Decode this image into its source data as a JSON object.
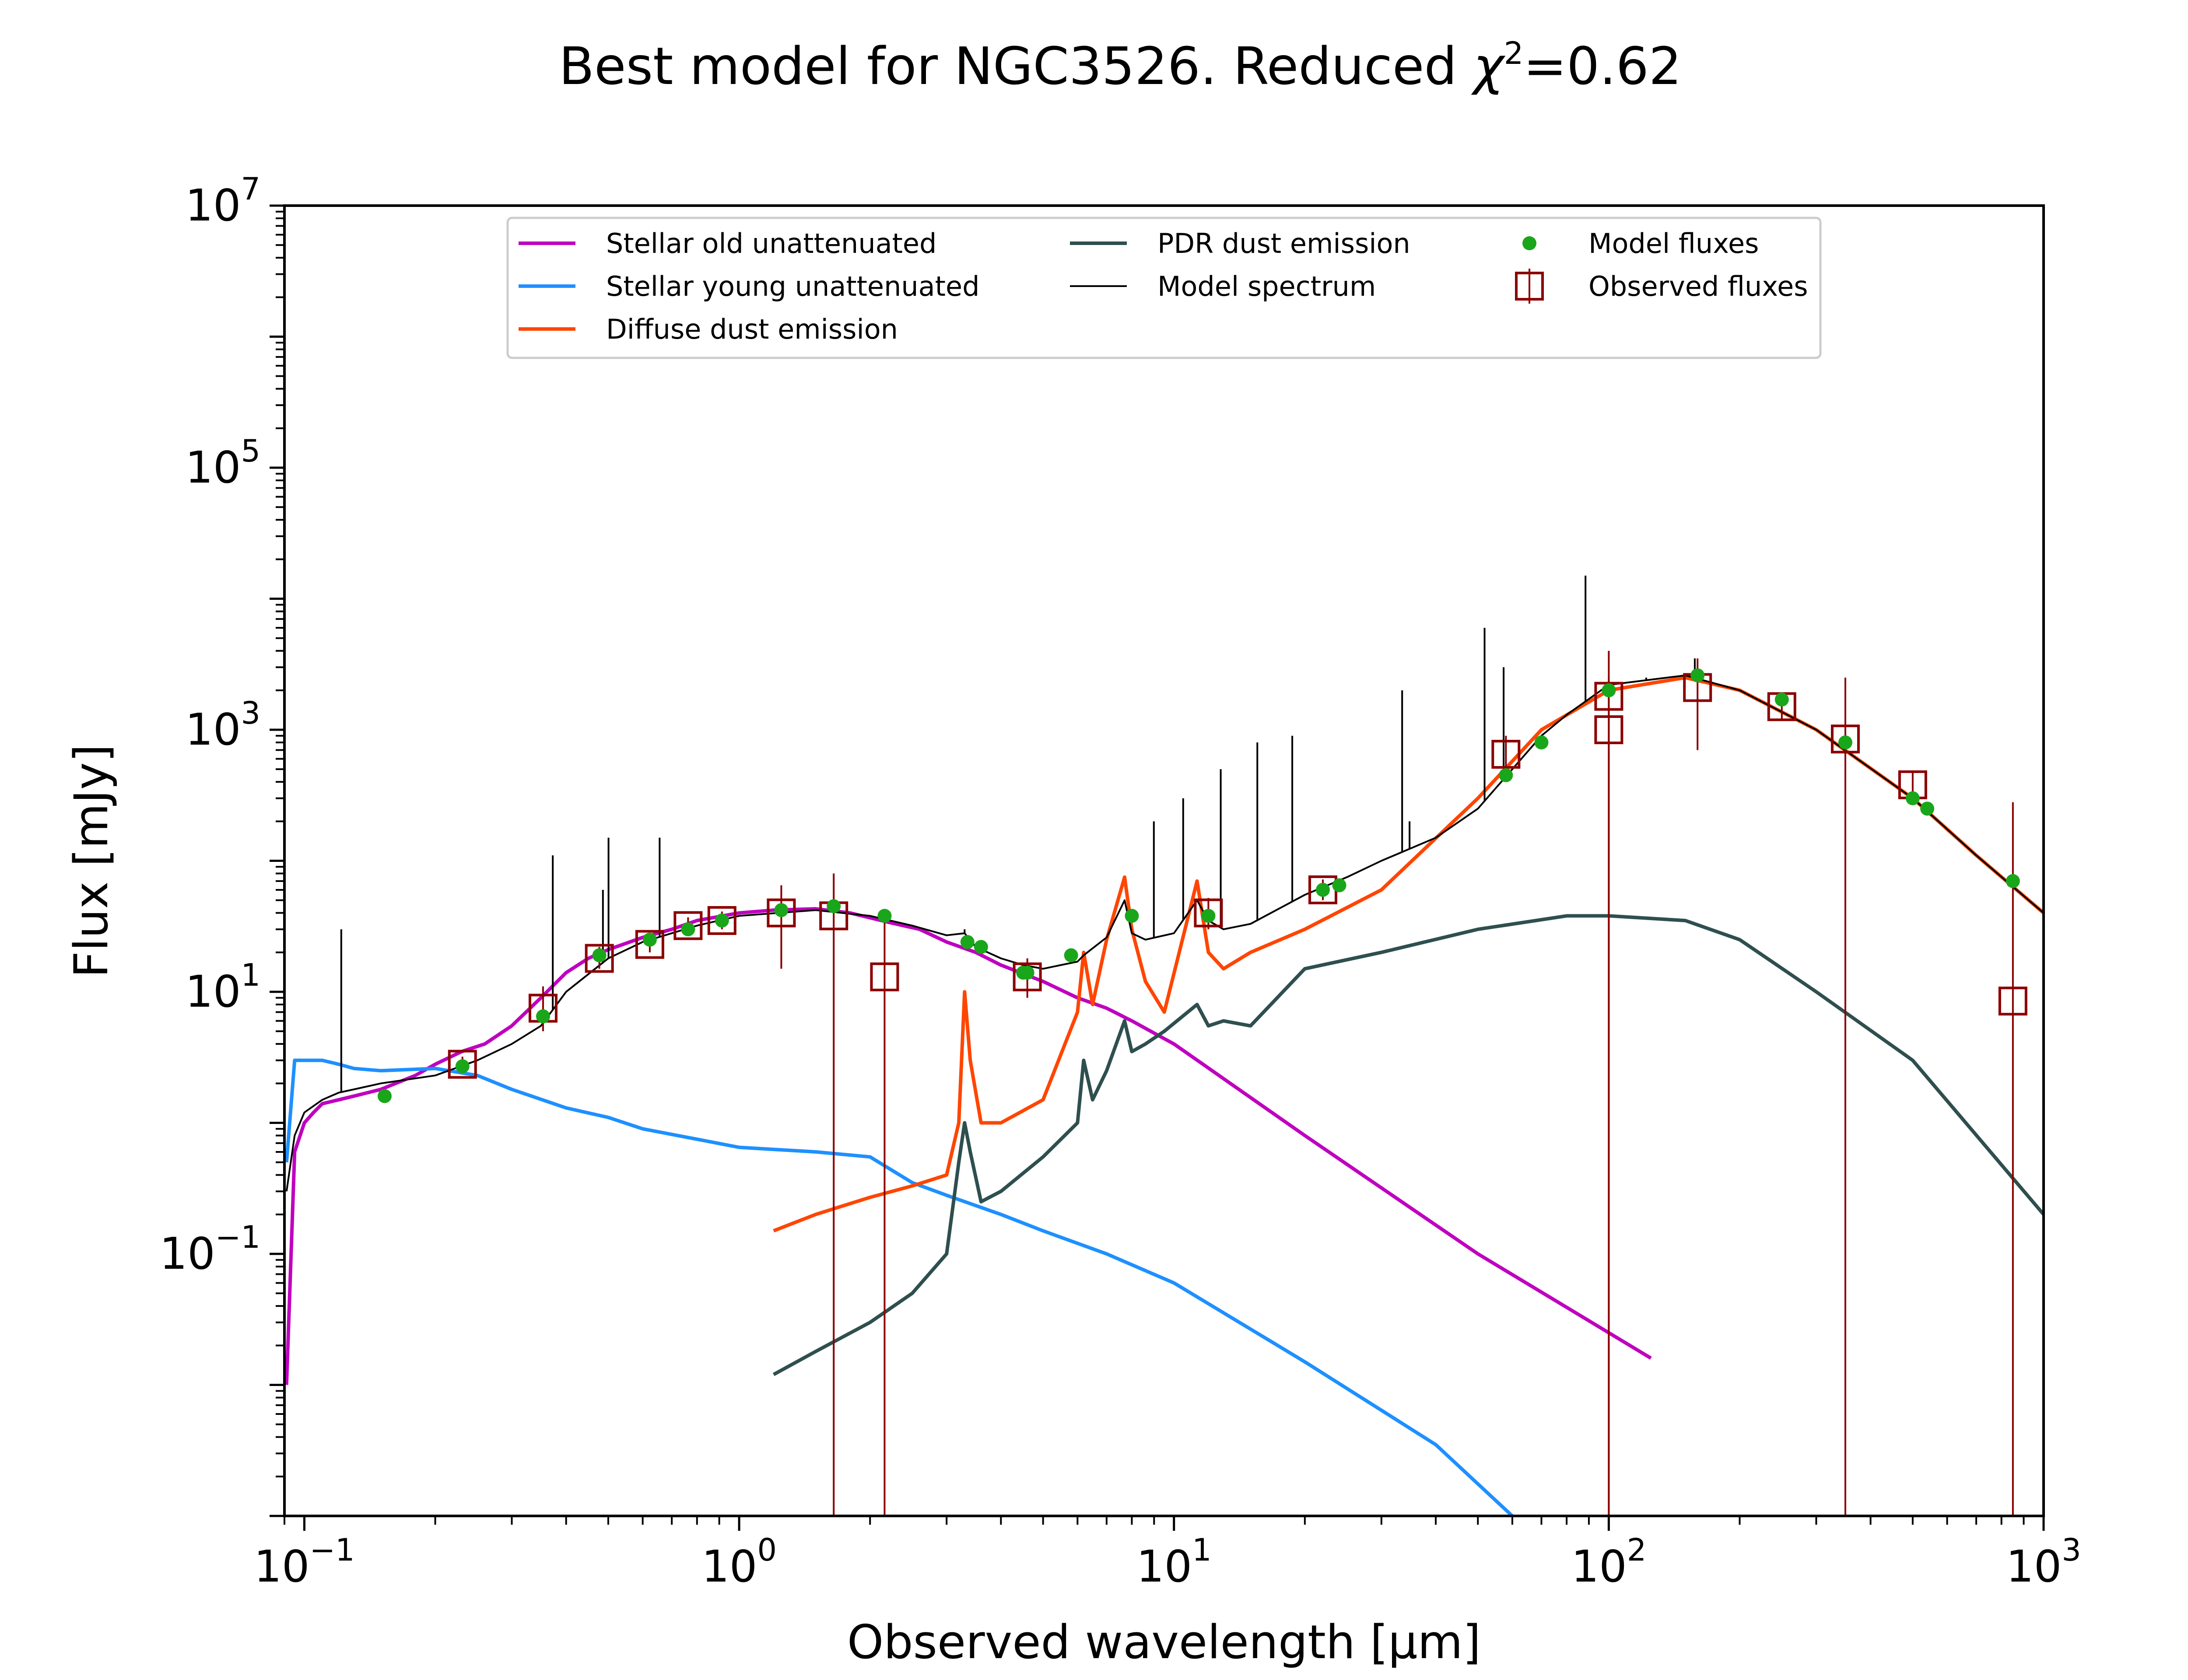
{
  "title_prefix": "Best model for NGC3526. Reduced ",
  "title_chi": "χ",
  "title_chi_power": "2",
  "title_value": "=0.62",
  "chart_data": {
    "type": "line",
    "title": "Best model for NGC3526. Reduced χ²=0.62",
    "xlabel": "Observed wavelength [μm]",
    "ylabel": "Flux [mJy]",
    "xscale": "log",
    "yscale": "log",
    "xlim": [
      0.09,
      1000
    ],
    "ylim": [
      0.001,
      10000000
    ],
    "xticks": [
      {
        "value": 0.1,
        "base": "10",
        "exp": "−1"
      },
      {
        "value": 1,
        "base": "10",
        "exp": "0"
      },
      {
        "value": 10,
        "base": "10",
        "exp": "1"
      },
      {
        "value": 100,
        "base": "10",
        "exp": "2"
      },
      {
        "value": 1000,
        "base": "10",
        "exp": "3"
      }
    ],
    "yticks": [
      {
        "value": 0.1,
        "base": "10",
        "exp": "−1"
      },
      {
        "value": 10,
        "base": "10",
        "exp": "1"
      },
      {
        "value": 1000,
        "base": "10",
        "exp": "3"
      },
      {
        "value": 100000,
        "base": "10",
        "exp": "5"
      },
      {
        "value": 10000000,
        "base": "10",
        "exp": "7"
      }
    ],
    "grid": false,
    "legend_position": "top-center",
    "legend": [
      {
        "label": "Stellar old unattenuated",
        "kind": "line",
        "color": "#bf00bf"
      },
      {
        "label": "Stellar young unattenuated",
        "kind": "line",
        "color": "#1e90ff"
      },
      {
        "label": "Diffuse dust emission",
        "kind": "line",
        "color": "#ff4500"
      },
      {
        "label": "PDR dust emission",
        "kind": "line",
        "color": "#2f4f4f"
      },
      {
        "label": "Model spectrum",
        "kind": "thinline",
        "color": "#000000"
      },
      {
        "label": "Model fluxes",
        "kind": "dot",
        "color": "#1aa61a"
      },
      {
        "label": "Observed fluxes",
        "kind": "square",
        "color": "#8b0000"
      }
    ],
    "series": [
      {
        "name": "Stellar old unattenuated",
        "color": "#bf00bf",
        "x": [
          0.091,
          0.095,
          0.1,
          0.105,
          0.11,
          0.12,
          0.13,
          0.15,
          0.18,
          0.2,
          0.23,
          0.26,
          0.3,
          0.35,
          0.4,
          0.45,
          0.5,
          0.6,
          0.7,
          0.8,
          1.0,
          1.2,
          1.5,
          1.8,
          2.2,
          2.6,
          3.0,
          3.5,
          4.0,
          5.0,
          6.0,
          7.0,
          8.0,
          10,
          20,
          50,
          100,
          125
        ],
        "y": [
          0.01,
          0.6,
          1.0,
          1.2,
          1.4,
          1.5,
          1.6,
          1.8,
          2.3,
          2.8,
          3.5,
          4.0,
          5.5,
          9.0,
          14,
          18,
          21,
          26,
          30,
          35,
          40,
          42,
          43,
          40,
          34,
          30,
          24,
          20,
          16,
          12,
          9.0,
          7.5,
          6.0,
          4.0,
          0.8,
          0.1,
          0.025,
          0.016
        ]
      },
      {
        "name": "Stellar young unattenuated",
        "color": "#1e90ff",
        "x": [
          0.091,
          0.095,
          0.1,
          0.11,
          0.12,
          0.13,
          0.15,
          0.2,
          0.25,
          0.3,
          0.4,
          0.5,
          0.6,
          0.8,
          1.0,
          1.5,
          2.0,
          2.5,
          3.0,
          4.0,
          5.0,
          7.0,
          10,
          20,
          40,
          60
        ],
        "y": [
          0.5,
          3.0,
          3.0,
          3.0,
          2.8,
          2.6,
          2.5,
          2.6,
          2.3,
          1.8,
          1.3,
          1.1,
          0.9,
          0.75,
          0.65,
          0.6,
          0.55,
          0.35,
          0.28,
          0.2,
          0.15,
          0.1,
          0.06,
          0.015,
          0.0035,
          0.001
        ]
      },
      {
        "name": "Diffuse dust emission",
        "color": "#ff4500",
        "x": [
          1.2,
          1.5,
          2.0,
          2.5,
          3.0,
          3.2,
          3.3,
          3.4,
          3.6,
          4.0,
          5.0,
          6.0,
          6.2,
          6.5,
          7.0,
          7.7,
          8.0,
          8.6,
          9.5,
          11.3,
          12,
          13,
          15,
          20,
          30,
          50,
          70,
          100,
          150,
          200,
          300,
          500,
          700,
          1000
        ],
        "y": [
          0.15,
          0.2,
          0.27,
          0.33,
          0.4,
          1.0,
          10,
          3.0,
          1.0,
          1.0,
          1.5,
          7.0,
          20,
          8.0,
          25,
          75,
          30,
          12,
          7.0,
          70,
          20,
          15,
          20,
          30,
          60,
          300,
          1000,
          2000,
          2500,
          2000,
          1000,
          300,
          110,
          40
        ]
      },
      {
        "name": "PDR dust emission",
        "color": "#2f4f4f",
        "x": [
          1.2,
          1.5,
          2.0,
          2.5,
          3.0,
          3.2,
          3.3,
          3.4,
          3.6,
          4.0,
          5.0,
          6.0,
          6.2,
          6.5,
          7.0,
          7.7,
          8.0,
          8.6,
          9.5,
          11.3,
          12,
          13,
          15,
          20,
          30,
          50,
          80,
          100,
          150,
          200,
          300,
          500,
          1000
        ],
        "y": [
          0.012,
          0.018,
          0.03,
          0.05,
          0.1,
          0.5,
          1.0,
          0.6,
          0.25,
          0.3,
          0.55,
          1.0,
          3.0,
          1.5,
          2.5,
          6.0,
          3.5,
          4.0,
          5.0,
          8.0,
          5.5,
          6.0,
          5.5,
          15,
          20,
          30,
          38,
          38,
          35,
          25,
          10,
          3.0,
          0.2
        ]
      },
      {
        "name": "Model spectrum",
        "color": "#000000",
        "x": [
          0.091,
          0.095,
          0.1,
          0.11,
          0.12,
          0.13,
          0.15,
          0.2,
          0.25,
          0.3,
          0.35,
          0.4,
          0.5,
          0.6,
          0.7,
          0.8,
          1.0,
          1.5,
          2.0,
          2.5,
          3.0,
          3.3,
          3.5,
          4.0,
          4.5,
          5.0,
          6.0,
          6.2,
          7.0,
          7.7,
          8.0,
          8.6,
          10,
          11.3,
          12,
          13,
          15,
          20,
          25,
          30,
          40,
          50,
          60,
          70,
          80,
          100,
          150,
          200,
          300,
          500,
          700,
          1000
        ],
        "y": [
          0.3,
          0.8,
          1.2,
          1.5,
          1.7,
          1.8,
          2.0,
          2.3,
          3.0,
          4.0,
          5.5,
          10,
          18,
          24,
          28,
          32,
          38,
          42,
          38,
          32,
          27,
          28,
          22,
          18,
          16,
          15,
          17,
          19,
          26,
          50,
          28,
          25,
          28,
          50,
          35,
          30,
          33,
          55,
          75,
          100,
          150,
          250,
          500,
          900,
          1300,
          2200,
          2600,
          2000,
          1000,
          300,
          110,
          40
        ]
      }
    ],
    "emission_lines": [
      {
        "x": 0.1216,
        "top": 30
      },
      {
        "x": 0.3727,
        "top": 110
      },
      {
        "x": 0.4861,
        "top": 60
      },
      {
        "x": 0.5007,
        "top": 150
      },
      {
        "x": 0.6563,
        "top": 150
      },
      {
        "x": 3.3,
        "top": 30
      },
      {
        "x": 8.99,
        "top": 200
      },
      {
        "x": 10.5,
        "top": 300
      },
      {
        "x": 12.81,
        "top": 500
      },
      {
        "x": 15.55,
        "top": 800
      },
      {
        "x": 18.71,
        "top": 900
      },
      {
        "x": 33.48,
        "top": 2000
      },
      {
        "x": 34.82,
        "top": 200
      },
      {
        "x": 51.8,
        "top": 6000
      },
      {
        "x": 57.3,
        "top": 3000
      },
      {
        "x": 88.4,
        "top": 15000
      },
      {
        "x": 121.9,
        "top": 2500
      },
      {
        "x": 157.7,
        "top": 3500
      }
    ],
    "model_fluxes": [
      {
        "x": 0.153,
        "y": 1.6
      },
      {
        "x": 0.231,
        "y": 2.7
      },
      {
        "x": 0.354,
        "y": 6.5
      },
      {
        "x": 0.477,
        "y": 19
      },
      {
        "x": 0.623,
        "y": 25
      },
      {
        "x": 0.763,
        "y": 30
      },
      {
        "x": 0.913,
        "y": 35
      },
      {
        "x": 1.25,
        "y": 42
      },
      {
        "x": 1.65,
        "y": 45
      },
      {
        "x": 2.16,
        "y": 38
      },
      {
        "x": 3.35,
        "y": 24
      },
      {
        "x": 3.6,
        "y": 22
      },
      {
        "x": 4.5,
        "y": 14
      },
      {
        "x": 4.6,
        "y": 14
      },
      {
        "x": 5.8,
        "y": 19
      },
      {
        "x": 8.0,
        "y": 38
      },
      {
        "x": 12,
        "y": 38
      },
      {
        "x": 22,
        "y": 60
      },
      {
        "x": 24,
        "y": 65
      },
      {
        "x": 58,
        "y": 450
      },
      {
        "x": 70,
        "y": 800
      },
      {
        "x": 100,
        "y": 2000
      },
      {
        "x": 160,
        "y": 2600
      },
      {
        "x": 250,
        "y": 1700
      },
      {
        "x": 350,
        "y": 800
      },
      {
        "x": 500,
        "y": 300
      },
      {
        "x": 540,
        "y": 250
      },
      {
        "x": 850,
        "y": 70
      }
    ],
    "observed_fluxes": [
      {
        "x": 0.231,
        "y": 2.8,
        "lo": 2.4,
        "hi": 3.2
      },
      {
        "x": 0.354,
        "y": 7.5,
        "lo": 5.0,
        "hi": 11
      },
      {
        "x": 0.477,
        "y": 18,
        "lo": 15,
        "hi": 22
      },
      {
        "x": 0.623,
        "y": 23,
        "lo": 20,
        "hi": 27
      },
      {
        "x": 0.763,
        "y": 32,
        "lo": 28,
        "hi": 37
      },
      {
        "x": 0.913,
        "y": 35,
        "lo": 30,
        "hi": 41
      },
      {
        "x": 1.25,
        "y": 40,
        "lo": 15,
        "hi": 65
      },
      {
        "x": 1.65,
        "y": 38,
        "lo": 0.001,
        "hi": 80
      },
      {
        "x": 2.16,
        "y": 13,
        "lo": 0.001,
        "hi": 40
      },
      {
        "x": 4.6,
        "y": 13,
        "lo": 9.0,
        "hi": 18
      },
      {
        "x": 12,
        "y": 40,
        "lo": 30,
        "hi": 52
      },
      {
        "x": 22,
        "y": 60,
        "lo": 50,
        "hi": 72
      },
      {
        "x": 58,
        "y": 650,
        "lo": 400,
        "hi": 900
      },
      {
        "x": 100,
        "y": 1800,
        "lo": 0.001,
        "hi": 4000
      },
      {
        "x": 100,
        "y": 1000,
        "lo": 0.001,
        "hi": 2500
      },
      {
        "x": 160,
        "y": 2100,
        "lo": 700,
        "hi": 3500
      },
      {
        "x": 250,
        "y": 1500,
        "lo": 1200,
        "hi": 1800
      },
      {
        "x": 350,
        "y": 850,
        "lo": 0.001,
        "hi": 2500
      },
      {
        "x": 500,
        "y": 380,
        "lo": 280,
        "hi": 480
      },
      {
        "x": 850,
        "y": 8.5,
        "lo": 0.001,
        "hi": 280
      }
    ]
  }
}
